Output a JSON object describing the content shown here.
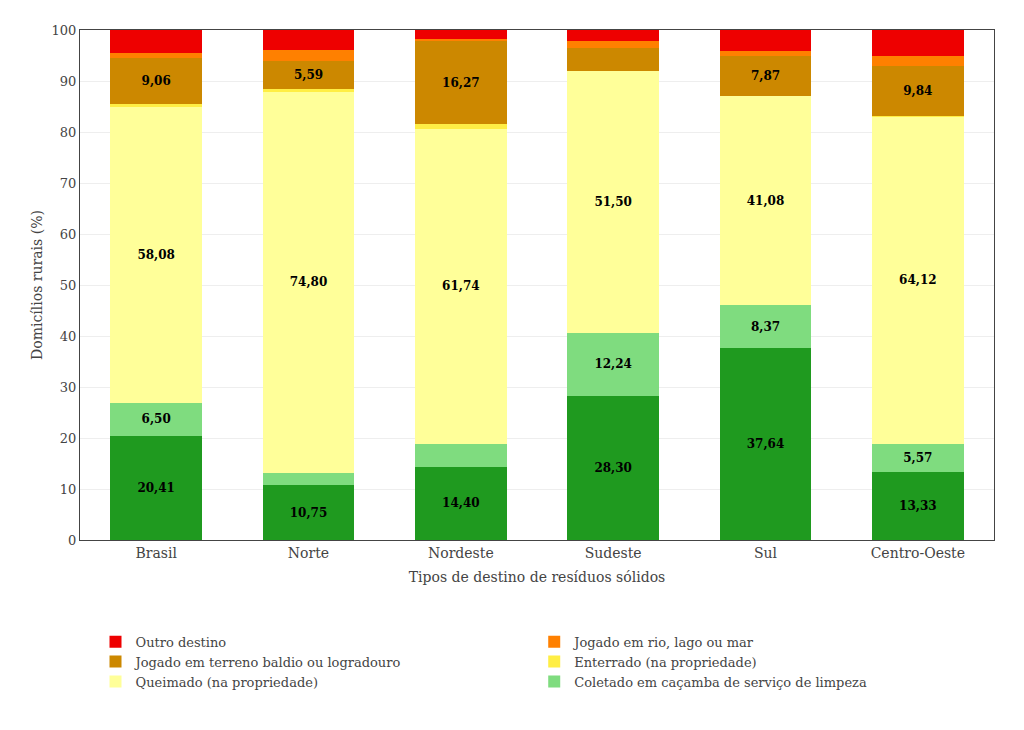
{
  "chart_data": {
    "type": "bar",
    "stacked": true,
    "data_labels": true,
    "grid": true,
    "legend": "bottom",
    "xlabel": "Tipos de destino de resíduos sólidos",
    "ylabel": "Domicílios rurais (%)",
    "categories": [
      "Brasil",
      "Norte",
      "Nordeste",
      "Sudeste",
      "Sul",
      "Centro-Oeste"
    ],
    "ylim": [
      0,
      100
    ],
    "yticks": [
      0,
      10,
      20,
      30,
      40,
      50,
      60,
      70,
      80,
      90,
      100
    ],
    "series": [
      {
        "color": "#1f9a1f",
        "values": [
          20.41,
          10.75,
          14.4,
          28.3,
          37.64,
          13.33
        ],
        "value_labels": [
          "20,41",
          "10,75",
          "14,40",
          "28,30",
          "37,64",
          "13,33"
        ]
      },
      {
        "name": "Coletado em caçamba de serviço de limpeza",
        "color": "#7fdc7f",
        "values": [
          6.5,
          2.36,
          4.46,
          12.24,
          8.37,
          5.57
        ],
        "value_labels": [
          "6,50",
          null,
          null,
          "12,24",
          "8,37",
          "5,57"
        ]
      },
      {
        "name": "Queimado (na propriedade)",
        "color": "#FFFF99",
        "values": [
          58.08,
          74.8,
          61.74,
          51.5,
          41.08,
          64.12
        ],
        "value_labels": [
          "58,08",
          "74,80",
          "61,74",
          "51,50",
          "41,08",
          "64,12"
        ]
      },
      {
        "name": "Enterrado (na propriedade)",
        "color": "#FFEE44",
        "values": [
          0.45,
          0.5,
          0.94,
          0.0,
          0.0,
          0.1
        ]
      },
      {
        "name": "Jogado em terreno baldio ou logradouro",
        "color": "#CC8800",
        "values": [
          9.06,
          5.59,
          16.27,
          4.5,
          7.87,
          9.84
        ],
        "value_labels": [
          "9,06",
          "5,59",
          "16,27",
          null,
          "7,87",
          "9,84"
        ]
      },
      {
        "name": "Jogado em rio, lago ou mar",
        "color": "#FF8000",
        "values": [
          1.0,
          2.0,
          0.46,
          1.3,
          1.0,
          2.0
        ]
      },
      {
        "name": "Outro destino",
        "color": "#EE0000",
        "values": [
          4.5,
          4.0,
          1.73,
          2.16,
          4.04,
          5.04
        ]
      }
    ]
  }
}
